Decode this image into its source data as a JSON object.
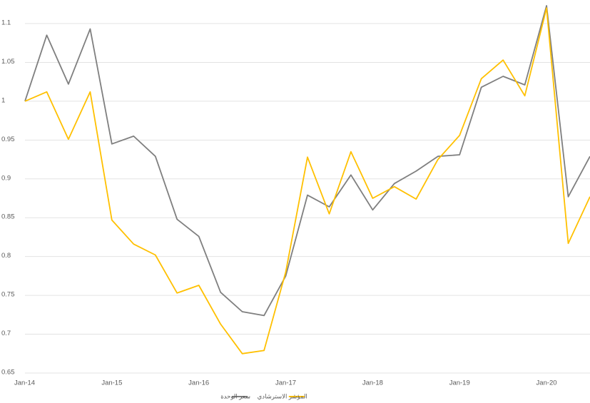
{
  "chart_data": {
    "type": "line",
    "categories": [
      "Jan-14",
      null,
      null,
      null,
      "Jan-15",
      null,
      null,
      null,
      "Jan-16",
      null,
      null,
      null,
      "Jan-17",
      null,
      null,
      null,
      "Jan-18",
      null,
      null,
      null,
      "Jan-19",
      null,
      null,
      null,
      "Jan-20",
      null,
      null
    ],
    "series": [
      {
        "name": "سعر الوحدة",
        "color": "#7f7f7f",
        "values": [
          1.0,
          1.085,
          1.022,
          1.093,
          0.945,
          0.955,
          0.929,
          0.848,
          0.826,
          0.754,
          0.729,
          0.724,
          0.775,
          0.879,
          0.864,
          0.905,
          0.86,
          0.894,
          0.91,
          0.929,
          0.931,
          1.018,
          1.032,
          1.021,
          1.123,
          0.877,
          0.929
        ]
      },
      {
        "name": "المؤشر الاسترشادي",
        "color": "#ffc000",
        "values": [
          1.0,
          1.012,
          0.951,
          1.012,
          0.847,
          0.816,
          0.802,
          0.753,
          0.763,
          0.713,
          0.675,
          0.679,
          0.78,
          0.928,
          0.855,
          0.935,
          0.875,
          0.89,
          0.874,
          0.925,
          0.956,
          1.029,
          1.053,
          1.007,
          1.12,
          0.817,
          0.877
        ]
      }
    ],
    "ylim": [
      0.65,
      1.1
    ],
    "yticks": [
      0.65,
      0.7,
      0.75,
      0.8,
      0.85,
      0.9,
      0.95,
      1,
      1.05,
      1.1
    ],
    "grid": true,
    "legend": "bottom"
  }
}
